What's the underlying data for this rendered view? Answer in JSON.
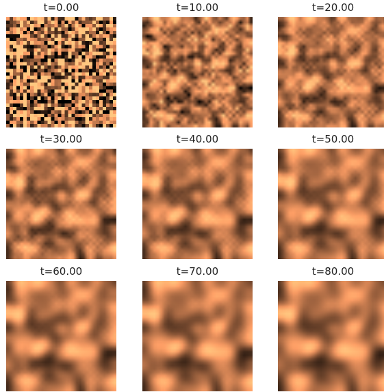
{
  "figure": {
    "colormap": "copper",
    "panels": [
      {
        "title": "t=0.00",
        "blur": 0
      },
      {
        "title": "t=10.00",
        "blur": 1
      },
      {
        "title": "t=20.00",
        "blur": 2
      },
      {
        "title": "t=30.00",
        "blur": 3
      },
      {
        "title": "t=40.00",
        "blur": 4
      },
      {
        "title": "t=50.00",
        "blur": 5
      },
      {
        "title": "t=60.00",
        "blur": 6
      },
      {
        "title": "t=70.00",
        "blur": 7
      },
      {
        "title": "t=80.00",
        "blur": 8
      }
    ]
  }
}
